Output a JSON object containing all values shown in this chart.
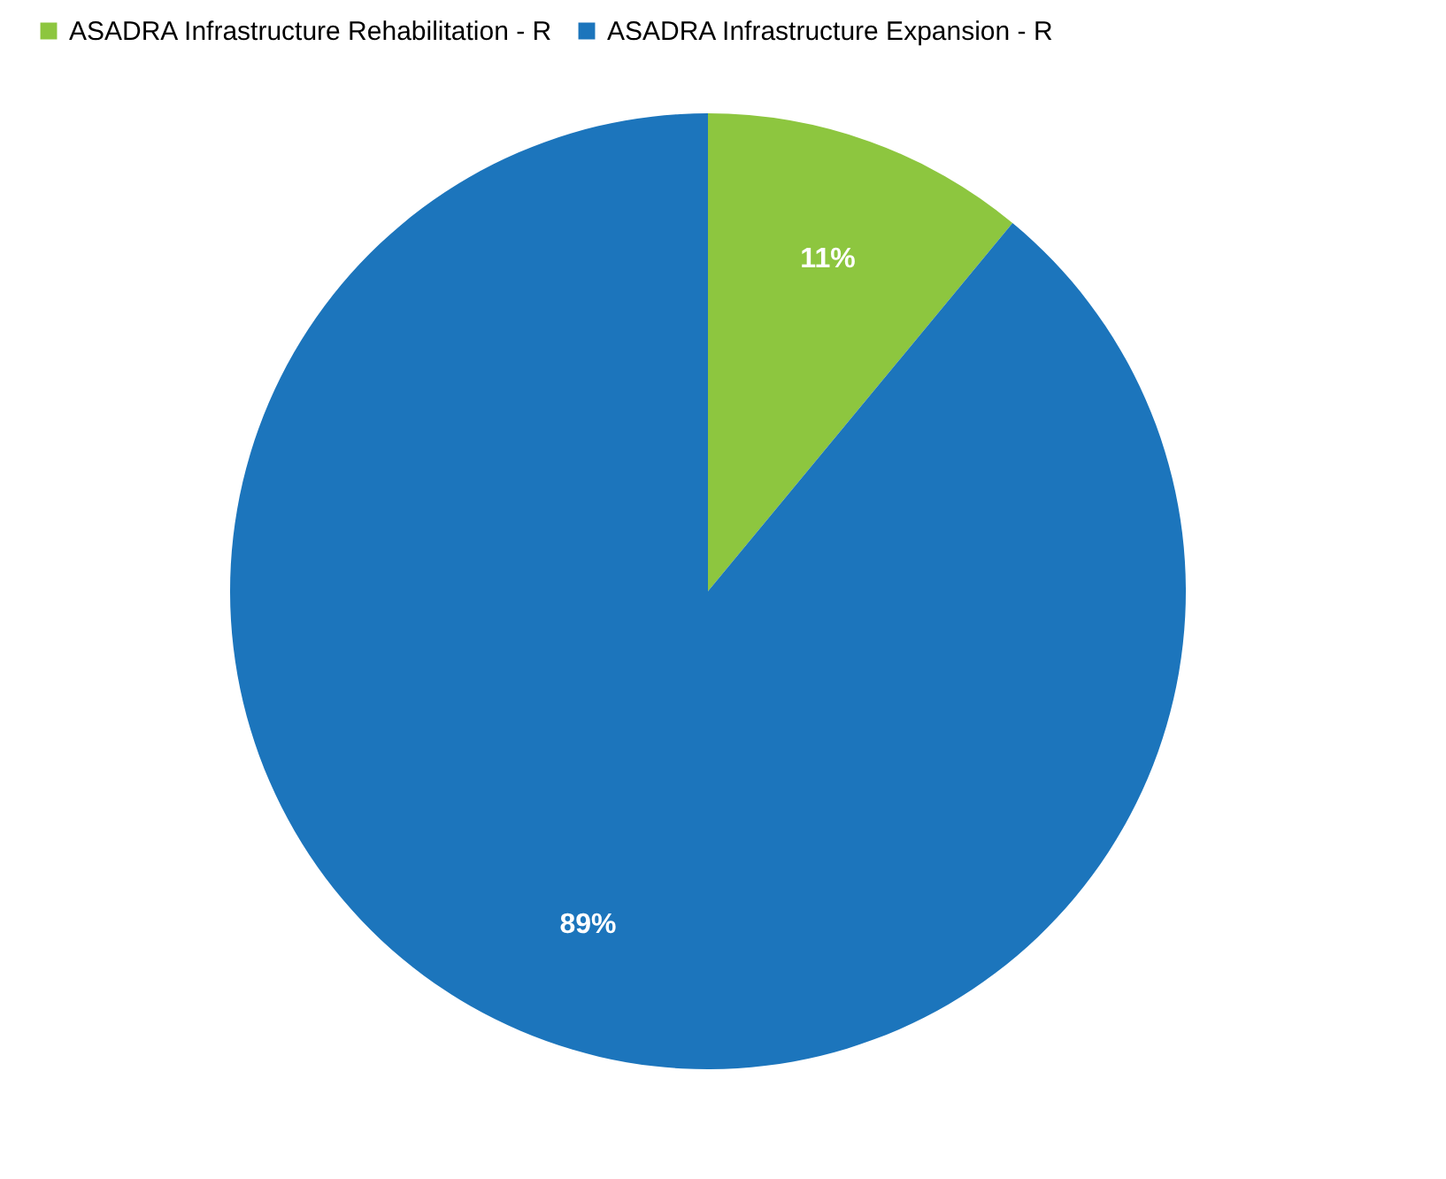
{
  "chart_data": {
    "type": "pie",
    "categories": [
      "ASADRA Infrastructure Rehabilitation - R",
      "ASADRA Infrastructure Expansion - R"
    ],
    "values": [
      11,
      89
    ],
    "colors": [
      "#8dc63f",
      "#1c75bc"
    ],
    "value_labels": [
      "11%",
      "89%"
    ],
    "legend": "top"
  }
}
